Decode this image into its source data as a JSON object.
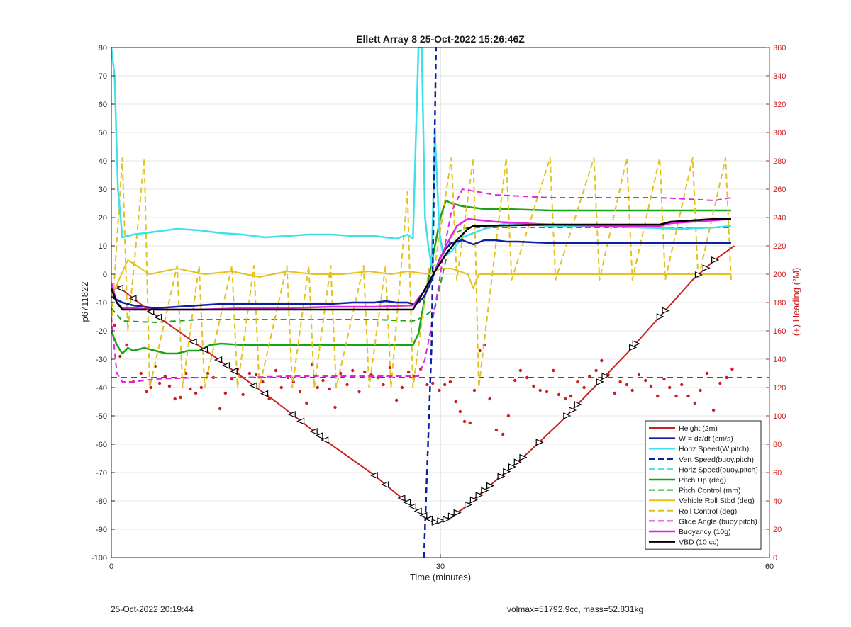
{
  "footer": {
    "left": "25-Oct-2022 20:19:44",
    "right": "volmax=51792.9cc, mass=52.831kg"
  },
  "chart_data": {
    "type": "line",
    "title": "Ellett Array 8 25-Oct-2022 15:26:46Z",
    "xlabel": "Time (minutes)",
    "ylabel": "p6711822",
    "y2label": "(+) Heading (°M)",
    "xlim": [
      0,
      60
    ],
    "ylim": [
      -100,
      80
    ],
    "y2lim": [
      0,
      360
    ],
    "xticks": [
      0,
      30,
      60
    ],
    "yticks": [
      -100,
      -90,
      -80,
      -70,
      -60,
      -50,
      -40,
      -30,
      -20,
      -10,
      0,
      10,
      20,
      30,
      40,
      50,
      60,
      70,
      80
    ],
    "y2ticks": [
      0,
      20,
      40,
      60,
      80,
      100,
      120,
      140,
      160,
      180,
      200,
      220,
      240,
      260,
      280,
      300,
      320,
      340,
      360
    ],
    "grid": true,
    "legend_position": "bottom-right",
    "reference_line_x": 30.0,
    "series": [
      {
        "name": "Height (2m)",
        "color": "#cc1f1f",
        "style": "solid",
        "width": 2,
        "x": [
          0.5,
          3.5,
          9,
          15,
          20,
          24,
          26,
          27.5,
          28.6,
          29.5,
          30.5,
          32,
          35,
          38,
          41,
          44,
          47,
          50,
          53,
          55,
          56.8
        ],
        "y": [
          -4,
          -13,
          -28,
          -45,
          -60,
          -71,
          -77.5,
          -82,
          -85.5,
          -87.5,
          -86.5,
          -83,
          -73,
          -63,
          -52,
          -40,
          -28,
          -15,
          -2,
          5,
          10
        ],
        "markers_x": [
          0.8,
          2.0,
          3.6,
          4.3,
          7.5,
          8.5,
          9.8,
          10.5,
          11.2,
          13.0,
          14.0,
          16.5,
          17.3,
          18.5,
          19.0,
          19.5,
          24.0,
          25.0,
          26.5,
          27.0,
          27.5,
          28.0,
          28.5,
          29.0,
          29.5,
          30.0,
          30.5,
          31.0,
          31.5,
          32.5,
          33.0,
          33.5,
          34.0,
          34.5,
          35.5,
          36.0,
          36.5,
          37.0,
          37.5,
          39.0,
          41.5,
          42.0,
          42.5,
          44.5,
          45.0,
          47.5,
          47.8,
          50.0,
          50.5,
          53.5,
          54.2,
          55.0
        ],
        "markers": "triangle"
      },
      {
        "name": "W = dz/dt (cm/s)",
        "color": "#0a1fa3",
        "style": "solid",
        "width": 2.5,
        "x": [
          0,
          1,
          2,
          4,
          6,
          8,
          10,
          12,
          14,
          16,
          18,
          20,
          22,
          24,
          25,
          26,
          27,
          27.5,
          28,
          28.5,
          29,
          29.5,
          30,
          30.5,
          31,
          32,
          33,
          34,
          35,
          36,
          37,
          40,
          43,
          46,
          49,
          52,
          55,
          56.5
        ],
        "y": [
          -8,
          -10,
          -11,
          -12,
          -11.5,
          -11,
          -10.5,
          -10.5,
          -10.5,
          -10.5,
          -10.5,
          -10.5,
          -10,
          -10,
          -9.5,
          -10,
          -10,
          -10.5,
          -10,
          -8,
          -4,
          1,
          6,
          9,
          11,
          12,
          10.5,
          12,
          12,
          11.5,
          11.5,
          11,
          11,
          11,
          11,
          11,
          11,
          11
        ]
      },
      {
        "name": "Horiz Speed(W,pitch)",
        "color": "#3ee0ea",
        "style": "solid",
        "width": 2.5,
        "x": [
          0,
          0.3,
          0.6,
          1,
          2,
          4,
          6,
          8,
          10,
          12,
          14,
          16,
          18,
          20,
          22,
          24,
          26,
          27,
          27.5,
          28,
          28.3,
          28.6,
          28.9,
          29.2,
          29.5,
          29.9,
          30.3,
          31,
          32,
          34,
          36,
          40,
          44,
          48,
          52,
          55,
          56.5
        ],
        "y": [
          80,
          70,
          30,
          13,
          14,
          15,
          16,
          15.5,
          14.5,
          14,
          13,
          13.5,
          14,
          14,
          13.5,
          13.5,
          12.5,
          14,
          12.5,
          80,
          80,
          20,
          10,
          3,
          50,
          15,
          6,
          8,
          13,
          16,
          18,
          17,
          17,
          16.5,
          16,
          16.5,
          17
        ]
      },
      {
        "name": "Vert Speed(buoy,pitch)",
        "color": "#0a1fa3",
        "style": "dashed",
        "width": 2.5,
        "x": [
          28.5,
          29.2,
          29.6
        ],
        "y": [
          -100,
          -25,
          80
        ]
      },
      {
        "name": "Horiz Speed(buoy,pitch)",
        "color": "#3ee0ea",
        "style": "dashed",
        "width": 2.5,
        "x": [],
        "y": []
      },
      {
        "name": "Pitch Up (deg)",
        "color": "#17a319",
        "style": "solid",
        "width": 2.5,
        "x": [
          0,
          0.5,
          1,
          1.5,
          2,
          3,
          4,
          5,
          6,
          7,
          8,
          9,
          10,
          12,
          14,
          16,
          18,
          20,
          22,
          24,
          26,
          27,
          27.5,
          28,
          28.5,
          29,
          29.5,
          30,
          30.5,
          31,
          32,
          34,
          36,
          40,
          44,
          48,
          52,
          55,
          56.5
        ],
        "y": [
          -20,
          -25,
          -28,
          -26,
          -27,
          -26,
          -27,
          -28,
          -28,
          -27,
          -27,
          -25,
          -24.5,
          -25,
          -25,
          -25,
          -25,
          -25,
          -25,
          -25,
          -25,
          -25,
          -25,
          -21,
          -10,
          0,
          10,
          20,
          26,
          25,
          24,
          23,
          23,
          22.5,
          22.5,
          22.5,
          22.5,
          22.5,
          22.5
        ]
      },
      {
        "name": "Pitch Control (mm)",
        "color": "#17a319",
        "style": "dashed",
        "width": 2,
        "x": [
          0,
          1,
          4,
          8,
          12,
          16,
          20,
          24,
          27.5,
          28.5,
          29.5,
          30.5,
          31,
          32.5,
          40,
          48,
          56.5
        ],
        "y": [
          -12,
          -16.5,
          -17,
          -16,
          -16,
          -16,
          -16,
          -16,
          -16.5,
          -15,
          -12,
          5,
          14,
          16.5,
          16.5,
          16.5,
          16.5
        ]
      },
      {
        "name": "Vehicle Roll Stbd (deg)",
        "color": "#e3c21e",
        "style": "solid",
        "width": 2,
        "x": [
          0,
          1.5,
          3.5,
          6,
          8.5,
          11,
          13.5,
          16,
          18.5,
          21,
          23.5,
          25.5,
          27,
          29,
          30,
          31,
          32.5,
          33,
          33.5,
          35,
          37,
          40,
          43,
          46,
          49,
          52,
          55,
          56.5
        ],
        "y": [
          -8,
          5,
          0,
          2,
          0,
          1,
          -1,
          1,
          0,
          0,
          1,
          0,
          1,
          0,
          2,
          2,
          0,
          -5,
          0,
          0,
          0,
          0,
          0,
          0,
          0,
          0,
          0,
          0
        ]
      },
      {
        "name": "Roll Control (deg)",
        "color": "#e3c21e",
        "style": "dashed",
        "width": 2,
        "x": [
          0,
          1,
          1.5,
          3,
          3.5,
          6,
          6.5,
          8,
          8.5,
          11,
          11.5,
          13,
          13.5,
          16,
          16.5,
          18,
          18.5,
          20,
          20.5,
          23,
          23.5,
          25,
          25.5,
          27,
          27.5,
          29,
          29.5,
          31,
          31.5,
          33,
          33.5,
          36,
          36.5,
          40,
          40.5,
          44,
          44.5,
          47,
          47.5,
          50,
          50.5,
          53,
          53.5,
          56,
          56.5
        ],
        "y": [
          -18,
          41,
          -20,
          41,
          -40,
          3,
          -40,
          3,
          -40,
          3,
          -40,
          3,
          -40,
          3,
          -40,
          3,
          -40,
          3,
          -40,
          3,
          -40,
          3,
          -40,
          29,
          -40,
          3,
          3,
          41,
          -2,
          41,
          -40,
          41,
          -2,
          41,
          -2,
          41,
          -2,
          41,
          -2,
          41,
          -2,
          41,
          -2,
          41,
          -2
        ]
      },
      {
        "name": "Glide Angle (buoy,pitch)",
        "color": "#e224e2",
        "style": "dashed",
        "width": 2,
        "x": [
          0,
          0.5,
          1,
          2,
          4,
          8,
          12,
          16,
          20,
          24,
          27,
          28,
          28.6,
          29.2,
          29.8,
          30.4,
          31,
          32,
          35,
          40,
          45,
          50,
          55,
          56.5
        ],
        "y": [
          -15,
          -35,
          -38,
          -38,
          -37,
          -36.5,
          -36.5,
          -36,
          -36,
          -36,
          -36,
          -36,
          -30,
          -18,
          -5,
          10,
          22,
          30,
          28,
          27,
          27,
          27,
          26,
          27
        ]
      },
      {
        "name": "Buoyancy (10g)",
        "color": "#e224e2",
        "style": "solid",
        "width": 2.5,
        "x": [
          0,
          0.5,
          1,
          2,
          4,
          8,
          12,
          16,
          20,
          24,
          27.5,
          28.5,
          29.5,
          30.5,
          31.5,
          32.5,
          35,
          40,
          45,
          50,
          51,
          55,
          56.5
        ],
        "y": [
          -3,
          -10,
          -12,
          -12,
          -12.5,
          -12.5,
          -12,
          -12,
          -11.5,
          -11.5,
          -11,
          -6,
          1,
          10,
          17,
          19.5,
          18.5,
          17.5,
          17,
          17,
          18,
          19,
          19.5
        ]
      },
      {
        "name": "VBD (10 cc)",
        "color": "#000000",
        "style": "solid",
        "width": 2.5,
        "x": [
          0,
          0.5,
          1,
          4,
          8,
          12,
          16,
          20,
          24,
          27.5,
          28.5,
          29.5,
          30.5,
          31.5,
          32.5,
          33,
          40,
          45,
          50,
          51,
          55,
          56.5
        ],
        "y": [
          -5,
          -10,
          -12.5,
          -12.5,
          -12.5,
          -12.5,
          -12.5,
          -12.5,
          -12.5,
          -12.5,
          -6,
          1,
          7,
          12,
          16,
          17,
          17.5,
          17.5,
          17.5,
          18.5,
          19.5,
          19.5
        ]
      }
    ],
    "heading_ref_line": {
      "y2": 127,
      "color": "#cc1f1f",
      "style": "dashed"
    },
    "heading_points": {
      "color": "#cc1f1f",
      "x": [
        0.3,
        0.8,
        1.4,
        2.0,
        2.7,
        3.2,
        3.6,
        4.0,
        4.4,
        4.9,
        5.3,
        5.8,
        6.3,
        6.8,
        7.2,
        7.7,
        8.2,
        8.8,
        9.3,
        9.9,
        10.4,
        11.0,
        11.5,
        12.0,
        12.6,
        13.2,
        13.8,
        14.4,
        15.0,
        15.5,
        16.1,
        16.6,
        17.2,
        17.8,
        18.3,
        18.8,
        19.3,
        19.9,
        20.4,
        20.9,
        21.5,
        22.0,
        22.6,
        23.1,
        23.7,
        24.3,
        24.8,
        25.4,
        26.0,
        26.5,
        27.1,
        27.6,
        28.2,
        28.8,
        29.3,
        29.9,
        30.4,
        30.9,
        31.4,
        31.8,
        32.2,
        32.7,
        33.1,
        33.6,
        34.0,
        34.5,
        35.1,
        35.7,
        36.2,
        36.8,
        37.3,
        37.9,
        38.5,
        39.1,
        39.7,
        40.3,
        40.8,
        41.4,
        41.9,
        42.5,
        43.1,
        43.6,
        44.2,
        44.7,
        45.3,
        45.9,
        46.4,
        47.0,
        47.5,
        48.1,
        48.7,
        49.2,
        49.8,
        50.4,
        50.9,
        51.5,
        52.0,
        52.6,
        53.2,
        53.7,
        54.3,
        54.9,
        55.5,
        56.1,
        56.6
      ],
      "y2": [
        164,
        142,
        150,
        124,
        130,
        117,
        120,
        135,
        123,
        128,
        121,
        112,
        113,
        130,
        119,
        116,
        120,
        130,
        127,
        105,
        116,
        126,
        133,
        115,
        130,
        129,
        124,
        112,
        132,
        120,
        127,
        124,
        117,
        109,
        136,
        120,
        125,
        119,
        106,
        130,
        122,
        132,
        117,
        131,
        129,
        127,
        122,
        134,
        111,
        120,
        131,
        128,
        133,
        122,
        123,
        118,
        122,
        124,
        110,
        103,
        96,
        95,
        118,
        146,
        150,
        112,
        90,
        87,
        100,
        125,
        132,
        127,
        121,
        118,
        117,
        132,
        115,
        112,
        114,
        124,
        120,
        128,
        132,
        139,
        129,
        116,
        124,
        122,
        118,
        129,
        125,
        121,
        114,
        126,
        120,
        114,
        122,
        114,
        109,
        118,
        130,
        104,
        123,
        127,
        133
      ]
    }
  }
}
